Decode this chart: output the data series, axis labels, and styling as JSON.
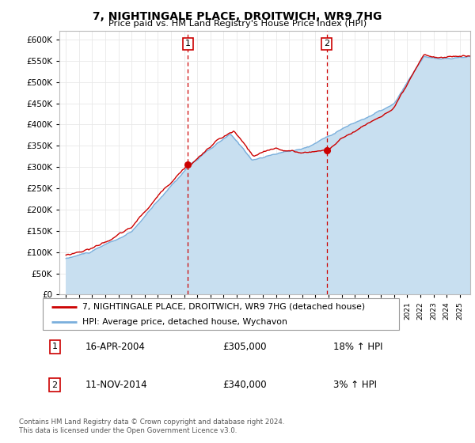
{
  "title": "7, NIGHTINGALE PLACE, DROITWICH, WR9 7HG",
  "subtitle": "Price paid vs. HM Land Registry's House Price Index (HPI)",
  "legend_line1": "7, NIGHTINGALE PLACE, DROITWICH, WR9 7HG (detached house)",
  "legend_line2": "HPI: Average price, detached house, Wychavon",
  "footnote1": "Contains HM Land Registry data © Crown copyright and database right 2024.",
  "footnote2": "This data is licensed under the Open Government Licence v3.0.",
  "sale1_label": "1",
  "sale1_date": "16-APR-2004",
  "sale1_price": "£305,000",
  "sale1_hpi": "18% ↑ HPI",
  "sale2_label": "2",
  "sale2_date": "11-NOV-2014",
  "sale2_price": "£340,000",
  "sale2_hpi": "3% ↑ HPI",
  "sale1_year": 2004.29,
  "sale1_value": 305000,
  "sale2_year": 2014.86,
  "sale2_value": 340000,
  "hpi_color": "#7aafdc",
  "hpi_fill_color": "#c8dff0",
  "price_color": "#cc0000",
  "dashed_color": "#cc0000",
  "ylim_min": 0,
  "ylim_max": 620000,
  "xlim_min": 1994.5,
  "xlim_max": 2025.8,
  "ytick_step": 50000,
  "background": "#ffffff",
  "grid_color": "#e8e8e8"
}
